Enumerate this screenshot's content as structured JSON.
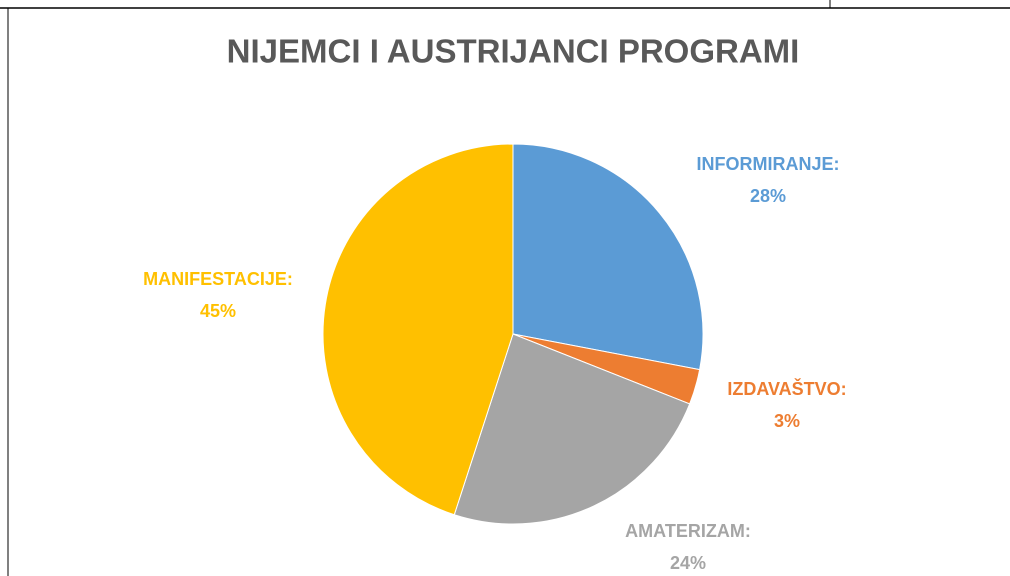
{
  "chart_data": {
    "type": "pie",
    "title": "NIJEMCI I AUSTRIJANCI PROGRAMI",
    "categories": [
      "INFORMIRANJE:",
      "IZDAVAŠTVO:",
      "AMATERIZAM:",
      "MANIFESTACIJE:"
    ],
    "values": [
      28,
      3,
      24,
      45
    ],
    "value_labels": [
      "28%",
      "3%",
      "24%",
      "45%"
    ],
    "colors": [
      "#5b9bd5",
      "#ed7d31",
      "#a5a5a5",
      "#ffc000"
    ]
  }
}
